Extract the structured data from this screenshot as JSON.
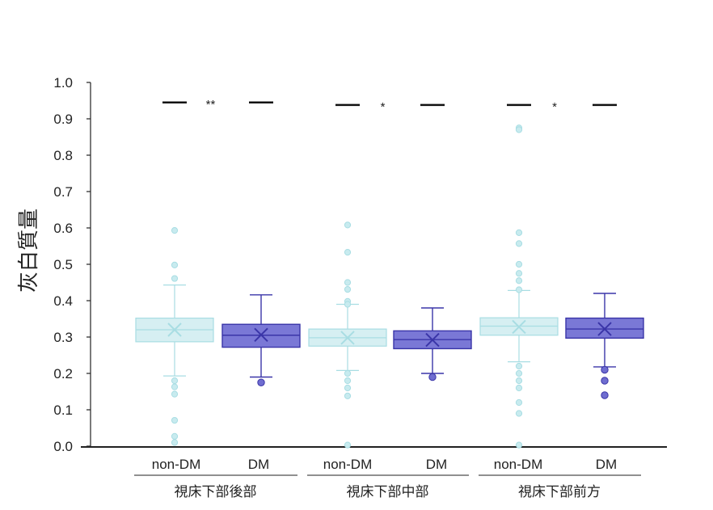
{
  "chart_data": {
    "type": "boxplot",
    "ylabel": "灰白質量",
    "ylim": [
      0.0,
      1.0
    ],
    "yticks": [
      "0.0",
      "0.1",
      "0.2",
      "0.3",
      "0.4",
      "0.5",
      "0.6",
      "0.7",
      "0.8",
      "0.9",
      "1.0"
    ],
    "grid": false,
    "colors": {
      "non-DM": {
        "fill": "#d6eff2",
        "stroke": "#a8dde3"
      },
      "DM": {
        "fill": "#7a78d6",
        "stroke": "#3a35a8"
      }
    },
    "groups": [
      {
        "label": "視床下部後部",
        "significance": "**",
        "sig_y": 0.945,
        "boxes": [
          {
            "label": "non-DM",
            "series": "non-DM",
            "whisker_low": 0.193,
            "q1": 0.287,
            "median": 0.32,
            "q3": 0.352,
            "whisker_high": 0.443,
            "mean": 0.32,
            "outliers": [
              0.593,
              0.498,
              0.461,
              0.18,
              0.163,
              0.143,
              0.071,
              0.027,
              0.01
            ]
          },
          {
            "label": "DM",
            "series": "DM",
            "whisker_low": 0.19,
            "q1": 0.272,
            "median": 0.305,
            "q3": 0.335,
            "whisker_high": 0.416,
            "mean": 0.306,
            "outliers": [
              0.175
            ]
          }
        ]
      },
      {
        "label": "視床下部中部",
        "significance": "*",
        "sig_y": 0.938,
        "boxes": [
          {
            "label": "non-DM",
            "series": "non-DM",
            "whisker_low": 0.208,
            "q1": 0.275,
            "median": 0.298,
            "q3": 0.322,
            "whisker_high": 0.39,
            "mean": 0.298,
            "outliers": [
              0.608,
              0.533,
              0.45,
              0.431,
              0.398,
              0.39,
              0.2,
              0.18,
              0.16,
              0.138,
              0.003
            ]
          },
          {
            "label": "DM",
            "series": "DM",
            "whisker_low": 0.2,
            "q1": 0.268,
            "median": 0.293,
            "q3": 0.317,
            "whisker_high": 0.38,
            "mean": 0.292,
            "outliers": [
              0.19
            ]
          }
        ]
      },
      {
        "label": "視床下部前方",
        "significance": "*",
        "sig_y": 0.938,
        "boxes": [
          {
            "label": "non-DM",
            "series": "non-DM",
            "whisker_low": 0.232,
            "q1": 0.305,
            "median": 0.33,
            "q3": 0.353,
            "whisker_high": 0.428,
            "mean": 0.328,
            "outliers": [
              0.875,
              0.87,
              0.587,
              0.557,
              0.5,
              0.475,
              0.455,
              0.43,
              0.22,
              0.2,
              0.18,
              0.16,
              0.12,
              0.09,
              0.003
            ]
          },
          {
            "label": "DM",
            "series": "DM",
            "whisker_low": 0.218,
            "q1": 0.297,
            "median": 0.322,
            "q3": 0.352,
            "whisker_high": 0.42,
            "mean": 0.322,
            "outliers": [
              0.21,
              0.18,
              0.14
            ]
          }
        ]
      }
    ]
  }
}
